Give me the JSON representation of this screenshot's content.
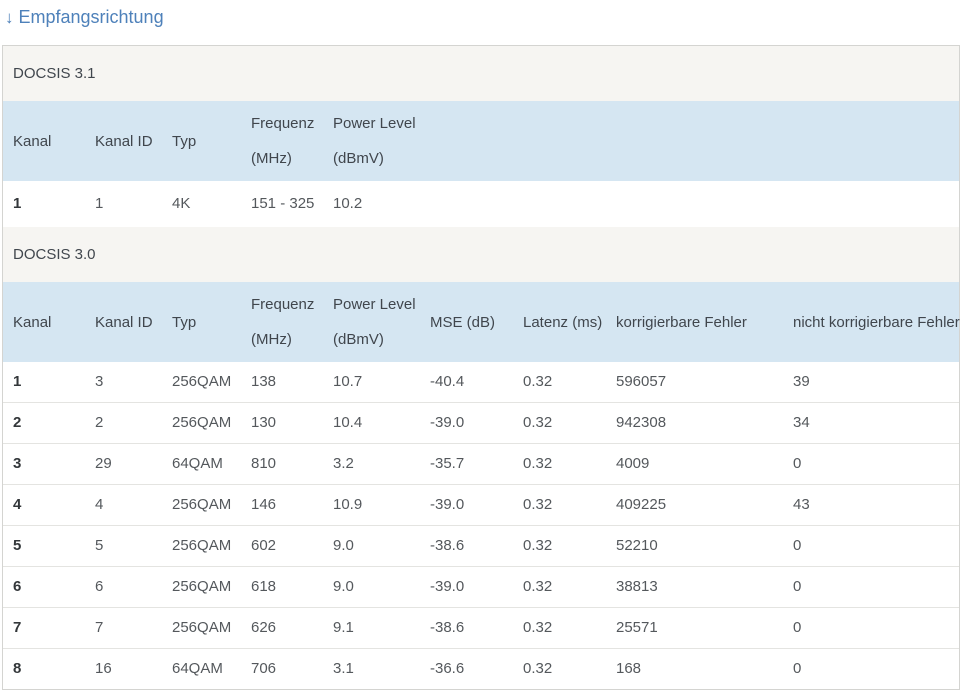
{
  "header": {
    "arrow": "↓",
    "title": "Empfangsrichtung"
  },
  "colors": {
    "accent_blue": "#4e81ba",
    "table_header_bg": "#d5e6f2",
    "section_bg": "#f6f5f2"
  },
  "sections": [
    {
      "id": "docsis31",
      "label": "DOCSIS 3.1",
      "columns": [
        [
          "Kanal"
        ],
        [
          "Kanal ID"
        ],
        [
          "Typ"
        ],
        [
          "Frequenz",
          "(MHz)"
        ],
        [
          "Power Level",
          "(dBmV)"
        ]
      ],
      "rows": [
        [
          "1",
          "1",
          "4K",
          "151 - 325",
          "10.2"
        ]
      ]
    },
    {
      "id": "docsis30",
      "label": "DOCSIS 3.0",
      "columns": [
        [
          "Kanal"
        ],
        [
          "Kanal ID"
        ],
        [
          "Typ"
        ],
        [
          "Frequenz",
          "(MHz)"
        ],
        [
          "Power Level",
          "(dBmV)"
        ],
        [
          "MSE (dB)"
        ],
        [
          "Latenz (ms)"
        ],
        [
          "korrigierbare Fehler"
        ],
        [
          "nicht korrigierbare Fehler"
        ]
      ],
      "rows": [
        [
          "1",
          "3",
          "256QAM",
          "138",
          "10.7",
          "-40.4",
          "0.32",
          "596057",
          "39"
        ],
        [
          "2",
          "2",
          "256QAM",
          "130",
          "10.4",
          "-39.0",
          "0.32",
          "942308",
          "34"
        ],
        [
          "3",
          "29",
          "64QAM",
          "810",
          "3.2",
          "-35.7",
          "0.32",
          "4009",
          "0"
        ],
        [
          "4",
          "4",
          "256QAM",
          "146",
          "10.9",
          "-39.0",
          "0.32",
          "409225",
          "43"
        ],
        [
          "5",
          "5",
          "256QAM",
          "602",
          "9.0",
          "-38.6",
          "0.32",
          "52210",
          "0"
        ],
        [
          "6",
          "6",
          "256QAM",
          "618",
          "9.0",
          "-39.0",
          "0.32",
          "38813",
          "0"
        ],
        [
          "7",
          "7",
          "256QAM",
          "626",
          "9.1",
          "-38.6",
          "0.32",
          "25571",
          "0"
        ],
        [
          "8",
          "16",
          "64QAM",
          "706",
          "3.1",
          "-36.6",
          "0.32",
          "168",
          "0"
        ]
      ]
    }
  ]
}
